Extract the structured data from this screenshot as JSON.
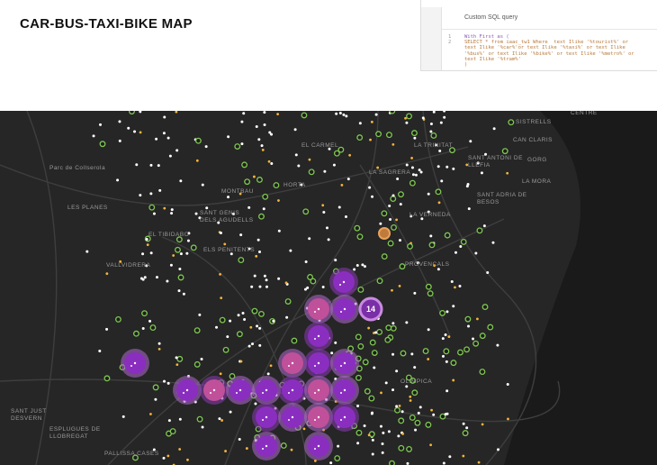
{
  "header": {
    "title": "CAR-BUS-TAXI-BIKE  MAP"
  },
  "sql_panel": {
    "title": "Custom SQL query",
    "line_numbers": [
      "1",
      "2"
    ],
    "code_lines": [
      "With First as (",
      "SELECT * from iaac_tw1 Where  text Ilike '%tourist%' or",
      "text Ilike '%car%'or text Ilike '%taxi%' or text Ilike",
      "'%bus%' or text Ilike '%bike%' or text Ilike '%metro%' or",
      "text Ilike '%tram%'",
      ")"
    ]
  },
  "map": {
    "place_labels": [
      [
        "SISTRELLS"
      ],
      [
        "CENTRE"
      ],
      [
        "CAN CLARIS"
      ],
      [
        "SANT ANTONI DE",
        "LLEFIA"
      ],
      [
        "GORG"
      ],
      [
        "LA MORA"
      ],
      [
        "SANT ADRIA DE",
        "BESOS"
      ],
      [
        "Parc de Collserola"
      ],
      [
        "LES PLANES"
      ],
      [
        "EL TIBIDABO"
      ],
      [
        "VALLVIDRERA"
      ],
      [
        "MONTBAU"
      ],
      [
        "SANT GENIS",
        "DELS AGUDELLS"
      ],
      [
        "HORTA"
      ],
      [
        "LA VERNEDA"
      ],
      [
        "ELS PENITENTS"
      ],
      [
        "PROVENCALS"
      ],
      [
        "SANT JUST",
        "DESVERN"
      ],
      [
        "ESPLUGUES DE",
        "LLOBREGAT"
      ],
      [
        "PALLISSA CASES"
      ],
      [
        "OLIMPICA"
      ],
      [
        "LA TRINITAT"
      ],
      [
        "LA SAGRERA"
      ],
      [
        "EL CARMEL"
      ]
    ],
    "cluster_label": "14"
  }
}
